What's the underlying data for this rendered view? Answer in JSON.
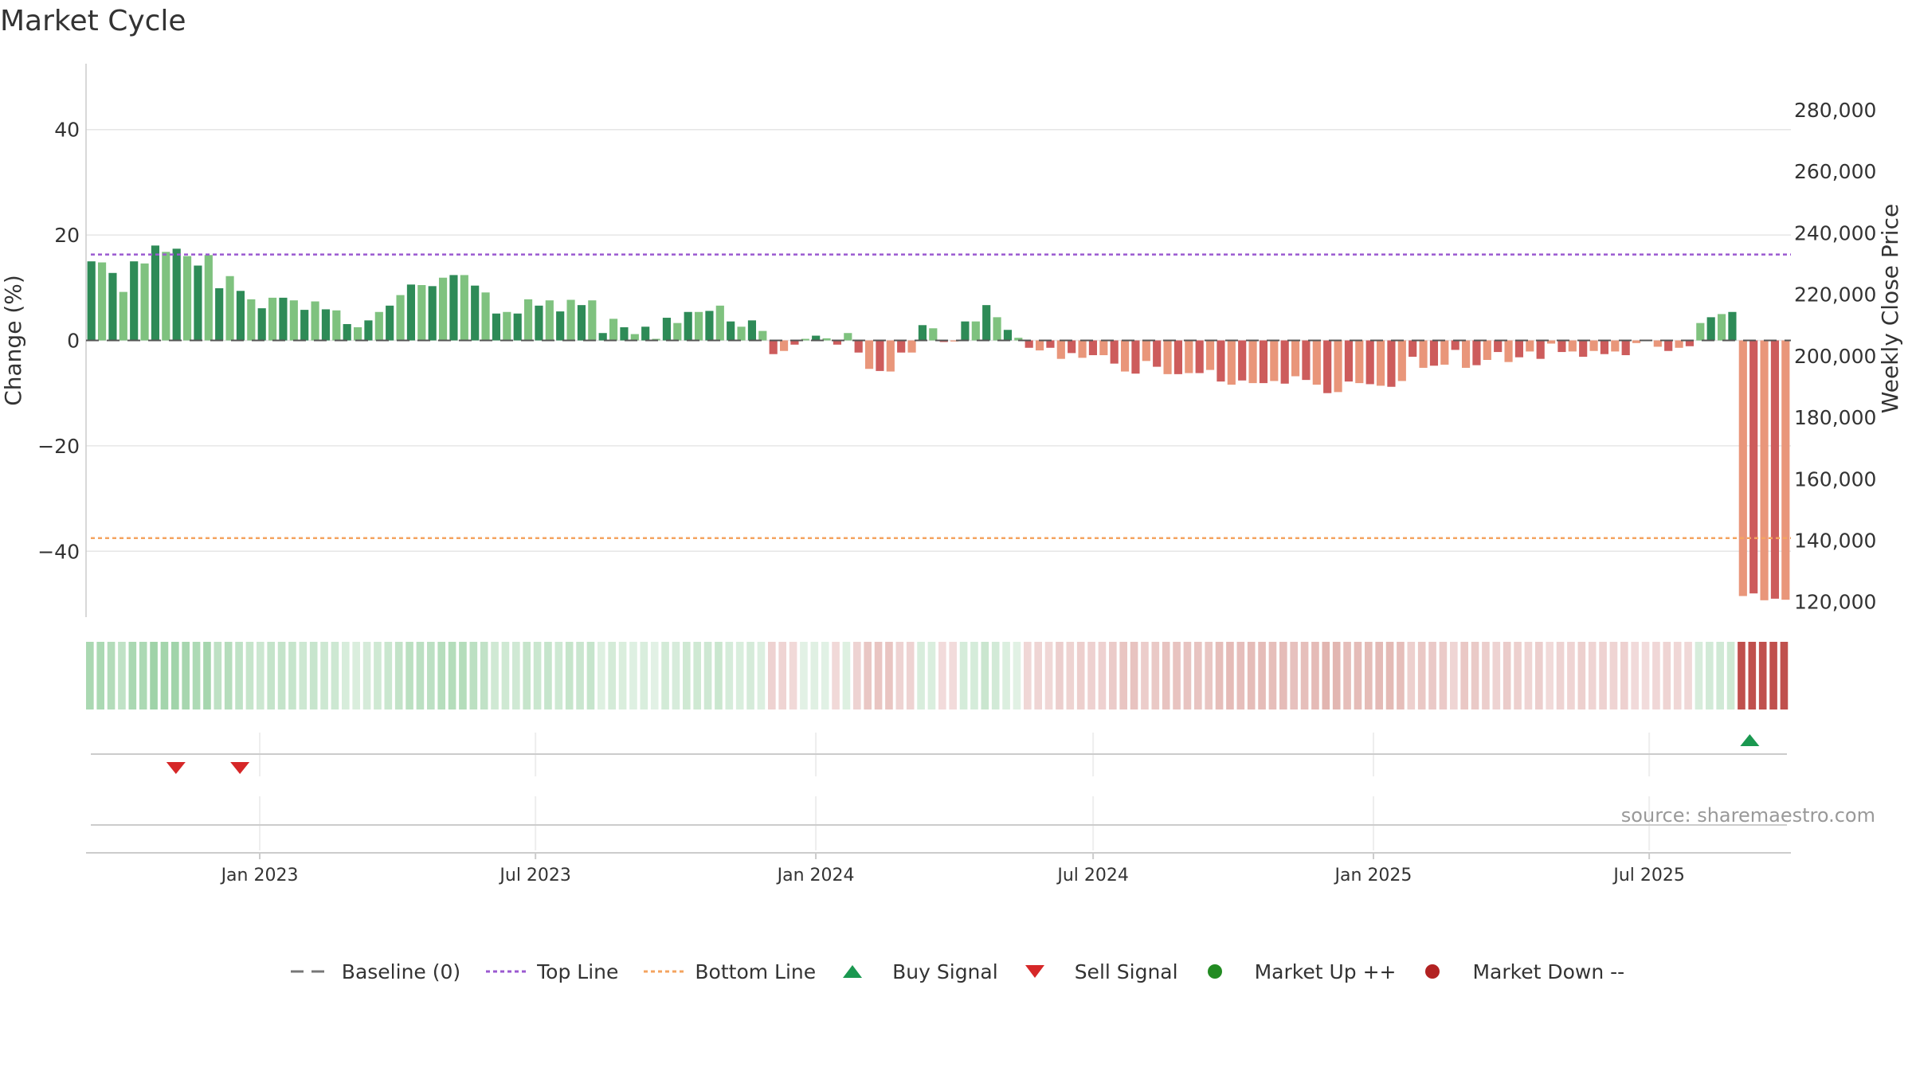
{
  "title": "Market Cycle",
  "source": "source: sharemaestro.com",
  "colors": {
    "up_strong": "#2e8b57",
    "up_light": "#7fc27f",
    "down_strong": "#cd5c5c",
    "down_light": "#e9967a",
    "top_line": "#9b59d0",
    "bottom_line": "#f4a460",
    "buy": "#1a9850",
    "sell": "#d62728",
    "market_up": "#228b22",
    "market_down": "#b22222",
    "baseline": "#555555"
  },
  "legend": [
    {
      "key": "baseline",
      "label": "Baseline (0)"
    },
    {
      "key": "top",
      "label": "Top Line"
    },
    {
      "key": "bottom",
      "label": "Bottom Line"
    },
    {
      "key": "buy",
      "label": "Buy Signal"
    },
    {
      "key": "sell",
      "label": "Sell Signal"
    },
    {
      "key": "mup",
      "label": "Market Up ++"
    },
    {
      "key": "mdown",
      "label": "Market Down --"
    }
  ],
  "chart_data": {
    "type": "bar",
    "title": "Market Cycle",
    "ylabel": "Change (%)",
    "ylabel_right": "Weekly Close Price",
    "ylim": [
      -52.5,
      52.5
    ],
    "ylim_right": [
      115000,
      295000
    ],
    "yticks": [
      40,
      20,
      0,
      -20,
      -40
    ],
    "ytick_labels": [
      "40",
      "20",
      "0",
      "−20",
      "−40"
    ],
    "yticks_right": [
      280000,
      260000,
      240000,
      220000,
      200000,
      180000,
      160000,
      140000,
      120000
    ],
    "ytick_labels_right": [
      "280,000",
      "260,000",
      "240,000",
      "220,000",
      "200,000",
      "180,000",
      "160,000",
      "140,000",
      "120,000"
    ],
    "x_start": "2022-09-09",
    "x_end": "2025-10-02",
    "xticks": [
      "2023-01-01",
      "2023-07-01",
      "2024-01-01",
      "2024-07-01",
      "2025-01-01",
      "2025-07-01"
    ],
    "xtick_labels": [
      "Jan 2023",
      "Jul 2023",
      "Jan 2024",
      "Jul 2024",
      "Jan 2025",
      "Jul 2025"
    ],
    "top_line": 16.3,
    "bottom_line": -37.5,
    "baseline": 0,
    "values": [
      15.0,
      14.8,
      12.8,
      9.2,
      15.0,
      14.6,
      18.0,
      16.8,
      17.4,
      16.0,
      14.2,
      16.2,
      9.9,
      12.2,
      9.4,
      7.8,
      6.1,
      8.1,
      8.1,
      7.6,
      5.8,
      7.4,
      5.9,
      5.7,
      3.1,
      2.5,
      3.8,
      5.4,
      6.6,
      8.6,
      10.6,
      10.5,
      10.3,
      11.9,
      12.4,
      12.4,
      10.4,
      9.1,
      5.1,
      5.4,
      5.1,
      7.8,
      6.6,
      7.6,
      5.5,
      7.7,
      6.7,
      7.6,
      1.4,
      4.1,
      2.5,
      1.2,
      2.6,
      0.3,
      4.3,
      3.3,
      5.4,
      5.4,
      5.6,
      6.6,
      3.6,
      2.6,
      3.8,
      1.8,
      -2.6,
      -2.0,
      -0.8,
      0.3,
      0.9,
      0.4,
      -0.8,
      1.4,
      -2.3,
      -5.4,
      -5.8,
      -5.9,
      -2.3,
      -2.3,
      2.9,
      2.3,
      -0.3,
      -0.2,
      3.6,
      3.6,
      6.7,
      4.4,
      2.0,
      0.5,
      -1.4,
      -1.9,
      -1.4,
      -3.5,
      -2.4,
      -3.3,
      -2.8,
      -2.8,
      -4.4,
      -5.9,
      -6.3,
      -3.9,
      -5.0,
      -6.4,
      -6.4,
      -6.2,
      -6.2,
      -5.6,
      -7.8,
      -8.4,
      -7.6,
      -8.1,
      -8.1,
      -7.7,
      -8.2,
      -6.8,
      -7.5,
      -8.4,
      -10.0,
      -9.8,
      -7.8,
      -8.1,
      -8.3,
      -8.6,
      -8.8,
      -7.7,
      -3.1,
      -5.2,
      -4.8,
      -4.6,
      -1.8,
      -5.2,
      -4.7,
      -3.7,
      -2.2,
      -4.1,
      -3.2,
      -2.1,
      -3.5,
      -0.6,
      -2.2,
      -2.1,
      -3.1,
      -2.0,
      -2.6,
      -2.1,
      -2.8,
      -0.5,
      -0.1,
      -1.2,
      -2.0,
      -1.4,
      -1.1,
      3.3,
      4.4,
      5.0,
      5.4,
      -48.5,
      -48.0,
      -49.3,
      -49.0,
      -49.2
    ],
    "buy_signals": [
      "2025-09-05"
    ],
    "sell_signals": [
      "2022-11-07",
      "2022-12-19"
    ]
  }
}
